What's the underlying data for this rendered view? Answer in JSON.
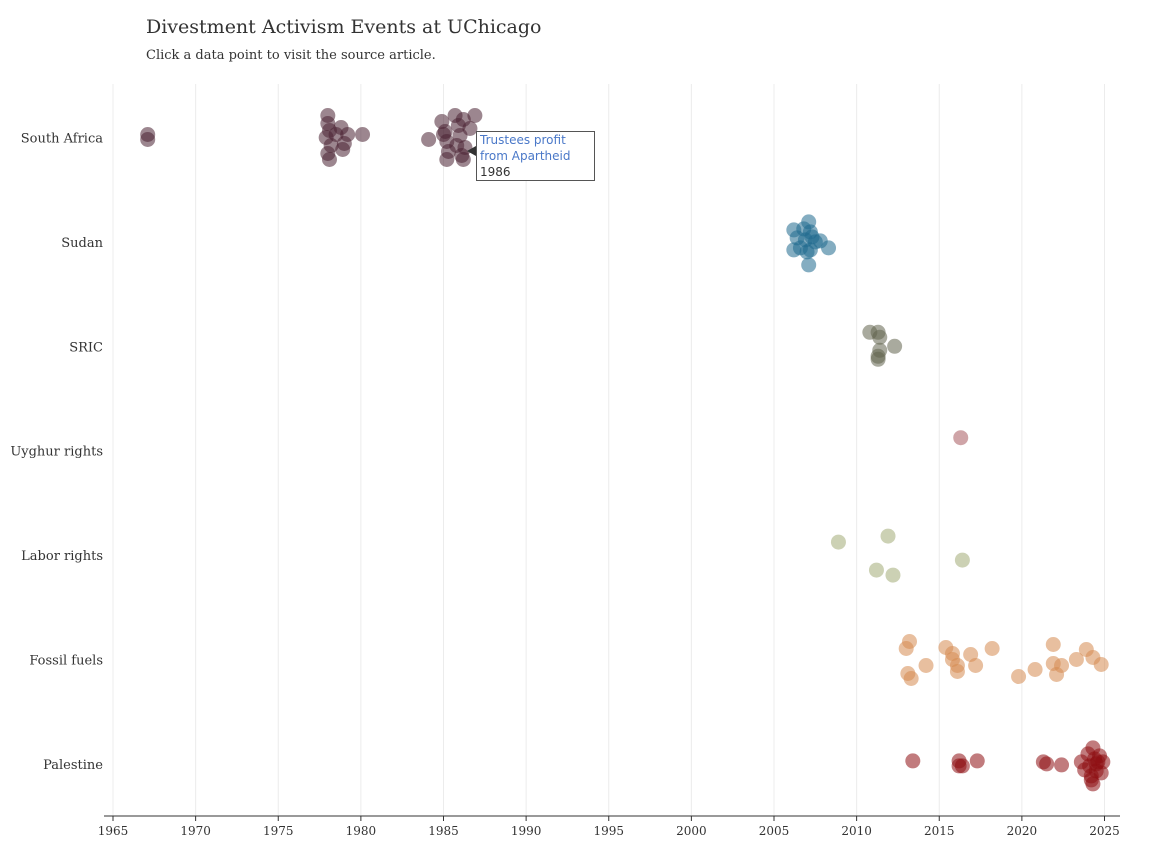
{
  "header": {
    "title": "Divestment Activism Events at UChicago",
    "subtitle": "Click a data point to visit the source article."
  },
  "tooltip": {
    "title": "Trustees profit from Apartheid",
    "year": "1986"
  },
  "chart_data": {
    "type": "scatter",
    "title": "Divestment Activism Events at UChicago",
    "xlabel": "",
    "ylabel": "",
    "xlim": [
      1965,
      2026
    ],
    "x_ticks": [
      1965,
      1970,
      1975,
      1980,
      1985,
      1990,
      1995,
      2000,
      2005,
      2010,
      2015,
      2020,
      2025
    ],
    "categories": [
      "South Africa",
      "Sudan",
      "SRIC",
      "Uyghur rights",
      "Labor rights",
      "Fossil fuels",
      "Palestine"
    ],
    "grid": "vertical",
    "legend": "none",
    "series": [
      {
        "category": "South Africa",
        "color": "#4a2233",
        "points": [
          {
            "x": 1967.1,
            "j": -0.03
          },
          {
            "x": 1967.1,
            "j": 0.02
          },
          {
            "x": 1978.0,
            "j": -0.22
          },
          {
            "x": 1978.0,
            "j": -0.14
          },
          {
            "x": 1978.1,
            "j": -0.07
          },
          {
            "x": 1977.9,
            "j": 0.0
          },
          {
            "x": 1978.2,
            "j": 0.08
          },
          {
            "x": 1978.0,
            "j": 0.16
          },
          {
            "x": 1978.1,
            "j": 0.22
          },
          {
            "x": 1978.5,
            "j": -0.03
          },
          {
            "x": 1978.8,
            "j": -0.1
          },
          {
            "x": 1979.0,
            "j": 0.06
          },
          {
            "x": 1978.9,
            "j": 0.12
          },
          {
            "x": 1979.2,
            "j": -0.03
          },
          {
            "x": 1980.1,
            "j": -0.03
          },
          {
            "x": 1984.1,
            "j": 0.02
          },
          {
            "x": 1984.9,
            "j": -0.16
          },
          {
            "x": 1985.1,
            "j": -0.06
          },
          {
            "x": 1985.2,
            "j": 0.04
          },
          {
            "x": 1985.3,
            "j": 0.14
          },
          {
            "x": 1985.2,
            "j": 0.22
          },
          {
            "x": 1985.7,
            "j": -0.22
          },
          {
            "x": 1985.9,
            "j": -0.12
          },
          {
            "x": 1986.0,
            "j": -0.02
          },
          {
            "x": 1985.8,
            "j": 0.08
          },
          {
            "x": 1986.1,
            "j": 0.18
          },
          {
            "x": 1986.2,
            "j": -0.18
          },
          {
            "x": 1986.3,
            "j": 0.1
          },
          {
            "x": 1986.2,
            "j": 0.22
          },
          {
            "x": 1986.9,
            "j": -0.22
          },
          {
            "x": 1986.6,
            "j": -0.09
          },
          {
            "x": 1985.0,
            "j": -0.03
          }
        ]
      },
      {
        "category": "Sudan",
        "color": "#1f6a8e",
        "points": [
          {
            "x": 2007.1,
            "j": -0.2
          },
          {
            "x": 2006.2,
            "j": -0.12
          },
          {
            "x": 2006.8,
            "j": -0.13
          },
          {
            "x": 2007.2,
            "j": -0.1
          },
          {
            "x": 2006.4,
            "j": -0.04
          },
          {
            "x": 2006.9,
            "j": -0.02
          },
          {
            "x": 2007.3,
            "j": -0.05
          },
          {
            "x": 2007.5,
            "j": 0.0
          },
          {
            "x": 2007.8,
            "j": -0.01
          },
          {
            "x": 2008.3,
            "j": 0.06
          },
          {
            "x": 2006.2,
            "j": 0.08
          },
          {
            "x": 2006.6,
            "j": 0.06
          },
          {
            "x": 2007.0,
            "j": 0.1
          },
          {
            "x": 2007.2,
            "j": 0.08
          },
          {
            "x": 2007.1,
            "j": 0.23
          }
        ]
      },
      {
        "category": "SRIC",
        "color": "#62654f",
        "points": [
          {
            "x": 2010.8,
            "j": -0.14
          },
          {
            "x": 2011.3,
            "j": -0.14
          },
          {
            "x": 2011.4,
            "j": -0.09
          },
          {
            "x": 2012.3,
            "j": 0.0
          },
          {
            "x": 2011.4,
            "j": 0.04
          },
          {
            "x": 2011.3,
            "j": 0.1
          },
          {
            "x": 2011.3,
            "j": 0.13
          }
        ]
      },
      {
        "category": "Uyghur rights",
        "color": "#a85a5f",
        "points": [
          {
            "x": 2016.3,
            "j": -0.13
          }
        ]
      },
      {
        "category": "Labor rights",
        "color": "#a2ab76",
        "points": [
          {
            "x": 2008.9,
            "j": -0.13
          },
          {
            "x": 2011.9,
            "j": -0.19
          },
          {
            "x": 2011.2,
            "j": 0.15
          },
          {
            "x": 2012.2,
            "j": 0.2
          },
          {
            "x": 2016.4,
            "j": 0.05
          }
        ]
      },
      {
        "category": "Fossil fuels",
        "color": "#d58a50",
        "points": [
          {
            "x": 2013.0,
            "j": -0.11
          },
          {
            "x": 2013.2,
            "j": -0.18
          },
          {
            "x": 2013.1,
            "j": 0.14
          },
          {
            "x": 2013.3,
            "j": 0.19
          },
          {
            "x": 2014.2,
            "j": 0.06
          },
          {
            "x": 2015.4,
            "j": -0.12
          },
          {
            "x": 2015.8,
            "j": -0.06
          },
          {
            "x": 2015.8,
            "j": 0.0
          },
          {
            "x": 2016.1,
            "j": 0.06
          },
          {
            "x": 2016.1,
            "j": 0.12
          },
          {
            "x": 2016.9,
            "j": -0.05
          },
          {
            "x": 2017.2,
            "j": 0.06
          },
          {
            "x": 2018.2,
            "j": -0.11
          },
          {
            "x": 2019.8,
            "j": 0.17
          },
          {
            "x": 2020.8,
            "j": 0.1
          },
          {
            "x": 2021.9,
            "j": -0.15
          },
          {
            "x": 2021.9,
            "j": 0.04
          },
          {
            "x": 2022.4,
            "j": 0.06
          },
          {
            "x": 2022.1,
            "j": 0.15
          },
          {
            "x": 2023.3,
            "j": 0.0
          },
          {
            "x": 2023.9,
            "j": -0.1
          },
          {
            "x": 2024.3,
            "j": -0.02
          },
          {
            "x": 2024.8,
            "j": 0.05
          }
        ]
      },
      {
        "category": "Palestine",
        "color": "#8e0e12",
        "points": [
          {
            "x": 2013.4,
            "j": -0.03
          },
          {
            "x": 2016.2,
            "j": -0.03
          },
          {
            "x": 2016.2,
            "j": 0.02
          },
          {
            "x": 2016.4,
            "j": 0.02
          },
          {
            "x": 2017.3,
            "j": -0.03
          },
          {
            "x": 2021.3,
            "j": -0.02
          },
          {
            "x": 2021.5,
            "j": 0.0
          },
          {
            "x": 2022.4,
            "j": 0.01
          },
          {
            "x": 2023.6,
            "j": -0.02
          },
          {
            "x": 2023.8,
            "j": 0.06
          },
          {
            "x": 2024.0,
            "j": -0.1
          },
          {
            "x": 2024.1,
            "j": 0.02
          },
          {
            "x": 2024.2,
            "j": 0.12
          },
          {
            "x": 2024.3,
            "j": -0.16
          },
          {
            "x": 2024.4,
            "j": -0.05
          },
          {
            "x": 2024.5,
            "j": 0.07
          },
          {
            "x": 2024.3,
            "j": 0.2
          },
          {
            "x": 2024.7,
            "j": -0.08
          },
          {
            "x": 2024.8,
            "j": 0.09
          },
          {
            "x": 2024.6,
            "j": -0.02
          },
          {
            "x": 2024.9,
            "j": -0.02
          },
          {
            "x": 2024.2,
            "j": 0.16
          },
          {
            "x": 2024.5,
            "j": 0.0
          }
        ]
      }
    ]
  }
}
